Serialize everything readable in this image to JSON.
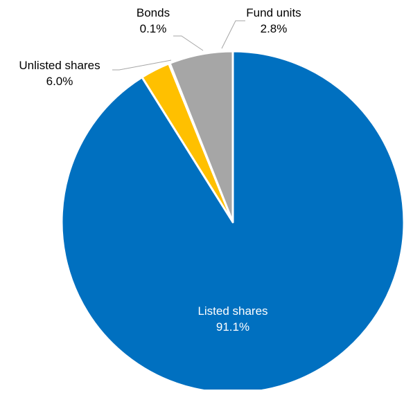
{
  "chart_data": {
    "type": "pie",
    "categories": [
      "Listed shares",
      "Fund units",
      "Bonds",
      "Unlisted shares"
    ],
    "values": [
      91.1,
      2.8,
      0.1,
      6.0
    ],
    "value_labels": [
      "91.1%",
      "2.8%",
      "0.1%",
      "6.0%"
    ],
    "colors": [
      "#0070C0",
      "#FFC000",
      "#D9D9D9",
      "#A6A6A6"
    ],
    "start_angle_deg": 0,
    "direction": "clockwise",
    "slice_border_color": "#FFFFFF",
    "leader_line_color": "#A6A6A6",
    "label_colors": [
      "#FFFFFF",
      "#000000",
      "#000000",
      "#000000"
    ],
    "legend": "none",
    "title": ""
  }
}
